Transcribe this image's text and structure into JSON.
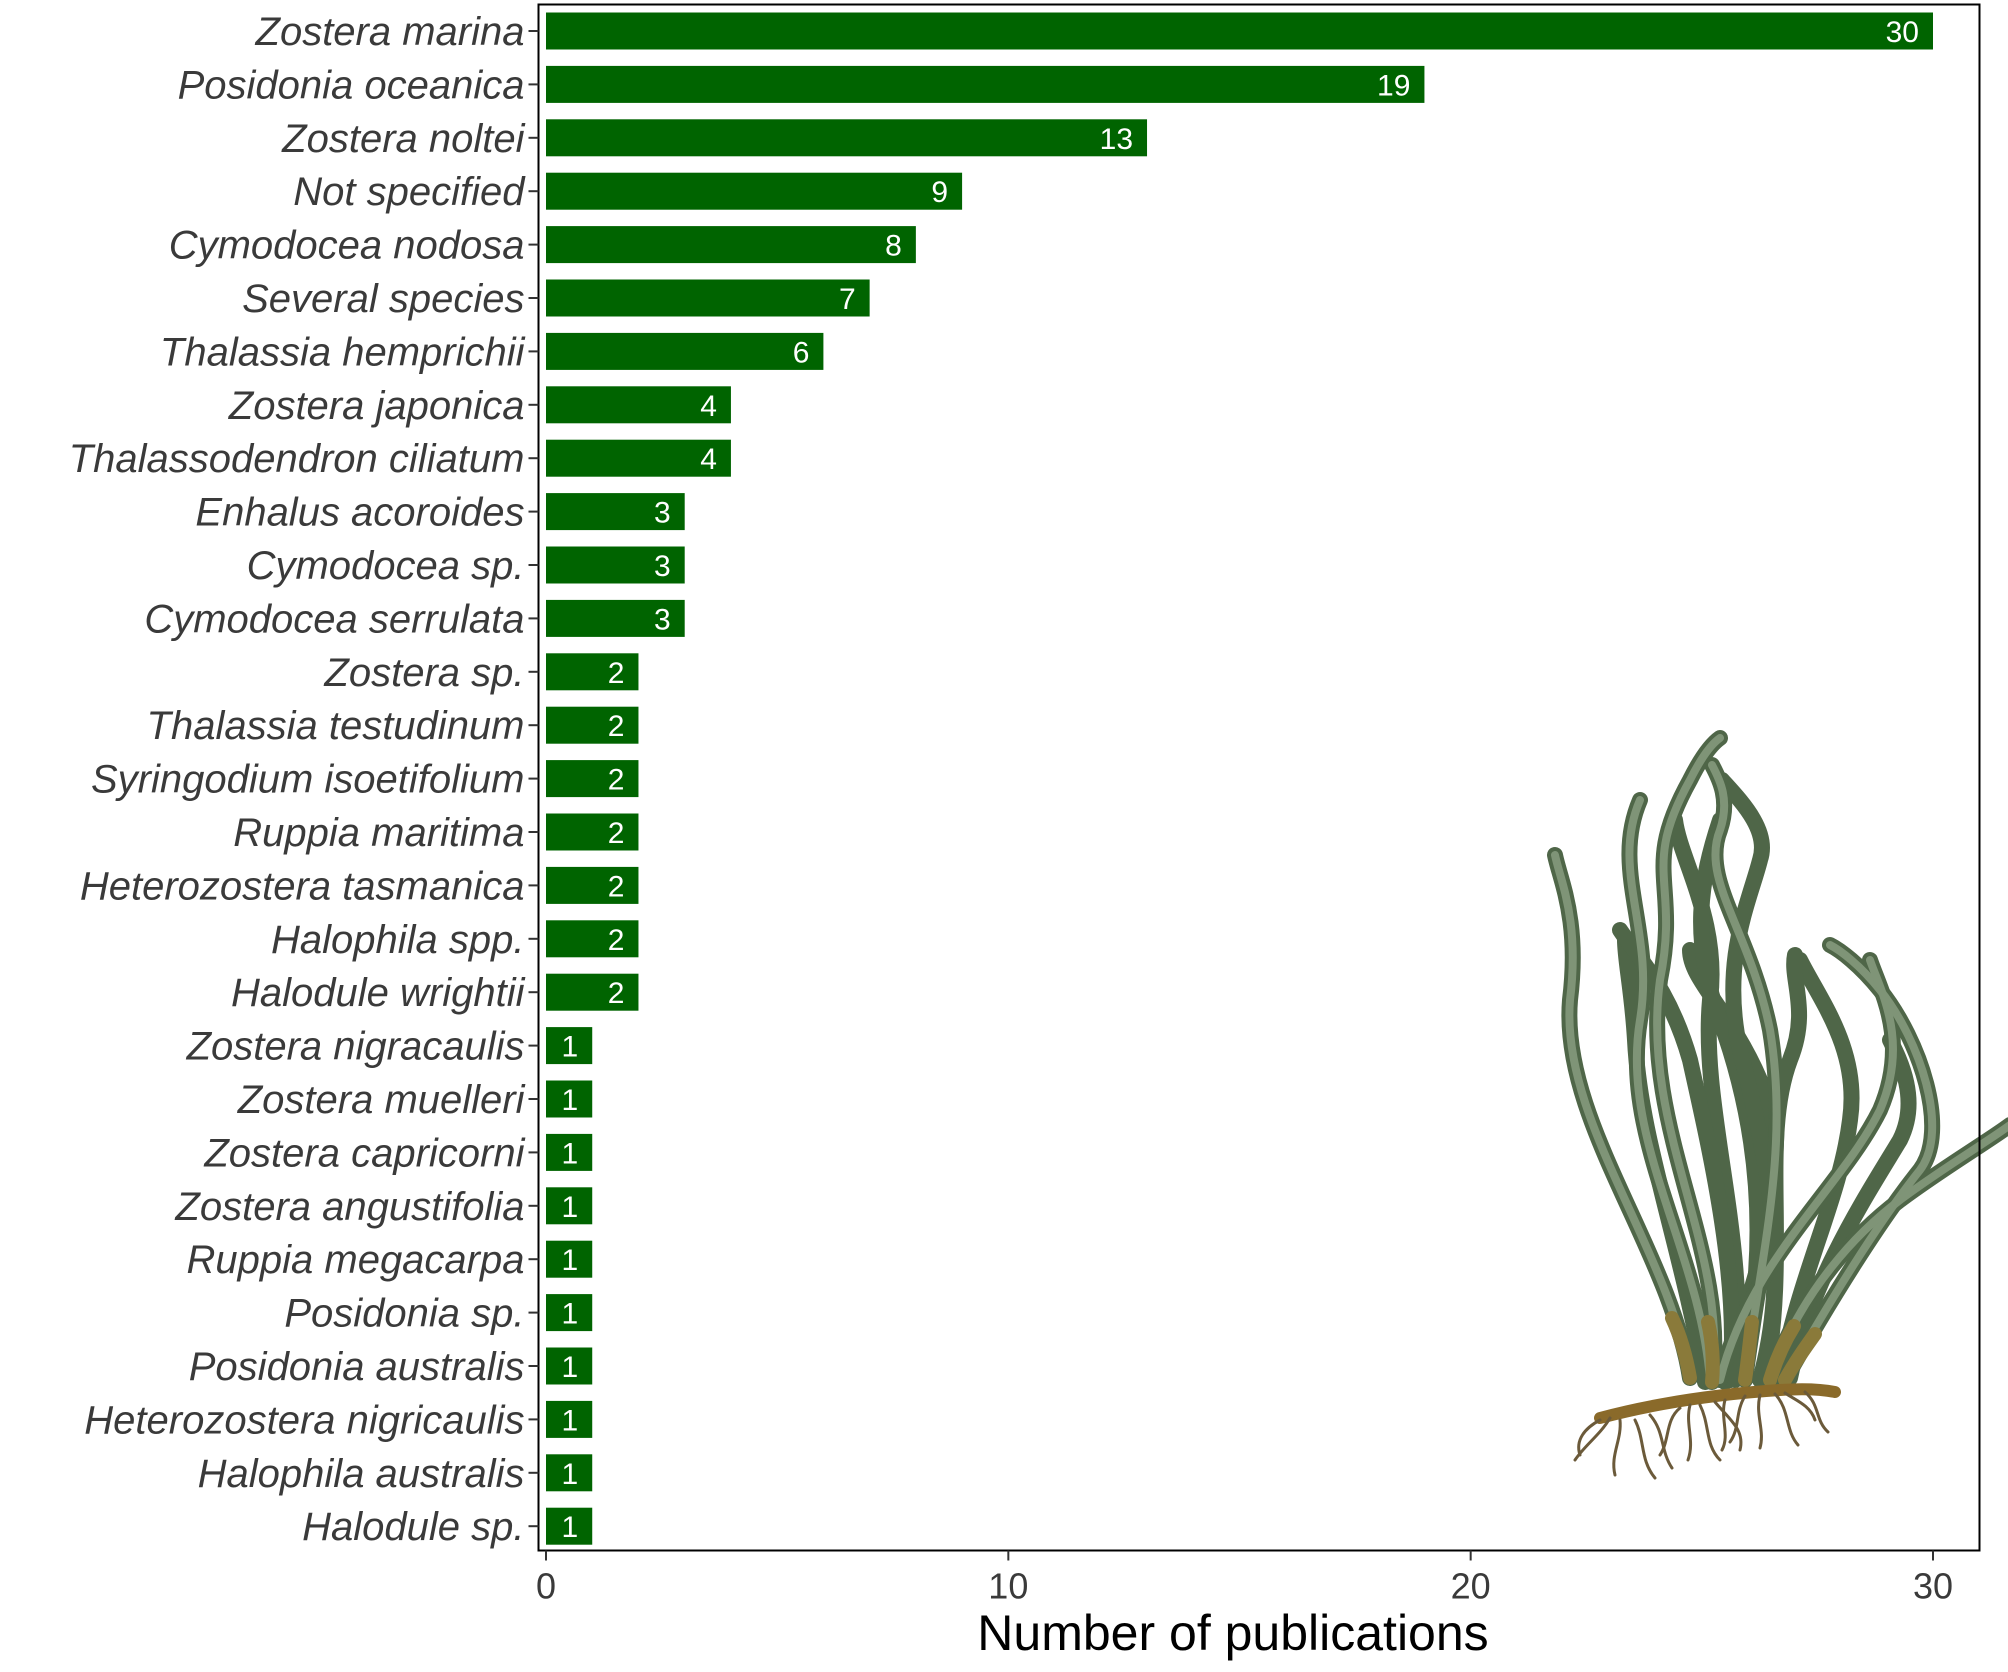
{
  "chart_data": {
    "type": "bar",
    "orientation": "horizontal",
    "categories": [
      "Zostera marina",
      "Posidonia oceanica",
      "Zostera noltei",
      "Not specified",
      "Cymodocea nodosa",
      "Several species",
      "Thalassia hemprichii",
      "Zostera japonica",
      "Thalassodendron ciliatum",
      "Enhalus acoroides",
      "Cymodocea sp.",
      "Cymodocea serrulata",
      "Zostera sp.",
      "Thalassia testudinum",
      "Syringodium isoetifolium",
      "Ruppia maritima",
      "Heterozostera tasmanica",
      "Halophila spp.",
      "Halodule wrightii",
      "Zostera nigracaulis",
      "Zostera muelleri",
      "Zostera capricorni",
      "Zostera angustifolia",
      "Ruppia megacarpa",
      "Posidonia sp.",
      "Posidonia australis",
      "Heterozostera nigricaulis",
      "Halophila australis",
      "Halodule sp."
    ],
    "values": [
      30,
      19,
      13,
      9,
      8,
      7,
      6,
      4,
      4,
      3,
      3,
      3,
      2,
      2,
      2,
      2,
      2,
      2,
      2,
      1,
      1,
      1,
      1,
      1,
      1,
      1,
      1,
      1,
      1
    ],
    "xlabel": "Number of publications",
    "xlim": [
      0,
      30
    ],
    "xticks": [
      0,
      10,
      20,
      30
    ],
    "bar_color": "#006400",
    "value_label_color": "#ffffff",
    "grid": false,
    "legend": "none",
    "illustration": "seagrass-illustration"
  }
}
